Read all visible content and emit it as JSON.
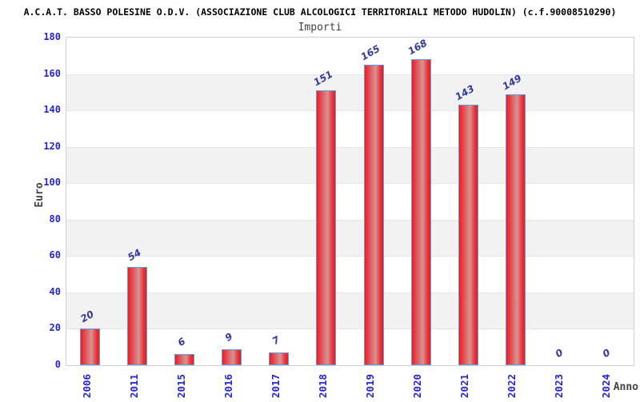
{
  "header": {
    "title": "A.C.A.T. BASSO POLESINE O.D.V. (ASSOCIAZIONE CLUB ALCOLOGICI TERRITORIALI METODO HUDOLIN) (c.f.90008510290)",
    "subtitle": "Importi"
  },
  "chart_data": {
    "type": "bar",
    "title": "Importi",
    "categories": [
      "2006",
      "2011",
      "2015",
      "2016",
      "2017",
      "2018",
      "2019",
      "2020",
      "2021",
      "2022",
      "2023",
      "2024"
    ],
    "values": [
      20,
      54,
      6,
      9,
      7,
      151,
      165,
      168,
      143,
      149,
      0,
      0
    ],
    "xlabel": "Anno",
    "ylabel": "Euro",
    "ylim": [
      0,
      180
    ],
    "ytick_step": 20,
    "grid": "horizontal",
    "legend_position": "none",
    "band_fill": "alternating",
    "colors": {
      "bar_edge": "#ec1c24",
      "bar_center": "#d59493",
      "bar_border": "#5aa2e4",
      "tick_label": "#2525cf",
      "value_label": "#333a99",
      "axis_title": "#444444",
      "title": "#000000",
      "subtitle": "#404040",
      "band_gray": "#f2f2f2",
      "band_white": "#ffffff",
      "plot_border": "#d0d0d0"
    }
  }
}
